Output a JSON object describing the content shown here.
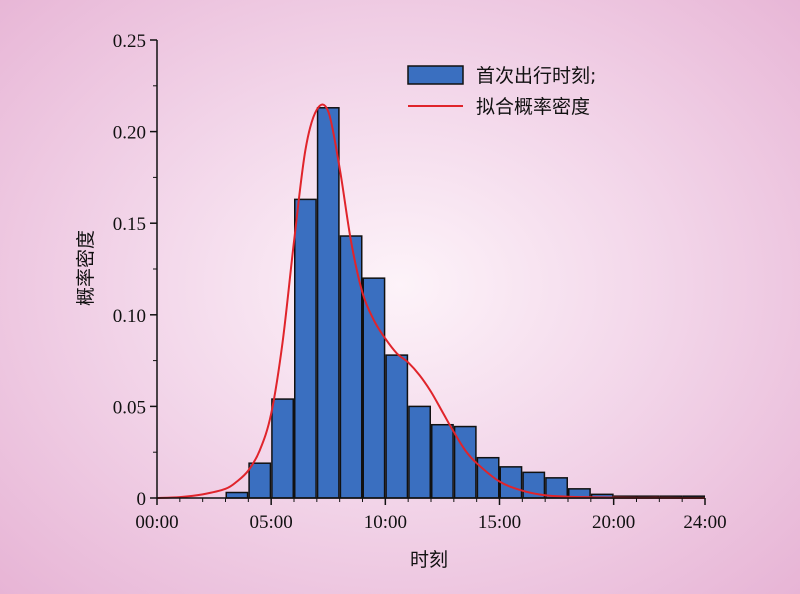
{
  "chart_data": {
    "type": "bar",
    "xlabel": "时刻",
    "ylabel": "概率密度",
    "xlim": [
      0,
      24
    ],
    "ylim": [
      0,
      0.25
    ],
    "x_ticks": [
      {
        "value": 0,
        "label": "00:00"
      },
      {
        "value": 5,
        "label": "05:00"
      },
      {
        "value": 10,
        "label": "10:00"
      },
      {
        "value": 15,
        "label": "15:00"
      },
      {
        "value": 20,
        "label": "20:00"
      },
      {
        "value": 24,
        "label": "24:00"
      }
    ],
    "y_ticks": [
      {
        "value": 0,
        "label": "0"
      },
      {
        "value": 0.05,
        "label": "0.05"
      },
      {
        "value": 0.1,
        "label": "0.10"
      },
      {
        "value": 0.15,
        "label": "0.15"
      },
      {
        "value": 0.2,
        "label": "0.20"
      },
      {
        "value": 0.25,
        "label": "0.25"
      }
    ],
    "legend_position": "top-right",
    "series": [
      {
        "name": "首次出行时刻;",
        "kind": "histogram",
        "color": "#3a6fc0",
        "bin_width": 1,
        "bin_starts": [
          3,
          4,
          5,
          6,
          7,
          8,
          9,
          10,
          11,
          12,
          13,
          14,
          15,
          16,
          17,
          18,
          19,
          20,
          21,
          22,
          23
        ],
        "values": [
          0.003,
          0.019,
          0.054,
          0.163,
          0.213,
          0.143,
          0.12,
          0.078,
          0.05,
          0.04,
          0.039,
          0.022,
          0.017,
          0.014,
          0.011,
          0.005,
          0.002,
          0.001,
          0.001,
          0.001,
          0.001
        ]
      },
      {
        "name": "拟合概率密度",
        "kind": "line",
        "color": "#e0242b",
        "x": [
          0,
          1,
          2,
          3,
          3.5,
          4,
          4.5,
          5,
          5.5,
          6,
          6.5,
          7,
          7.5,
          8,
          8.5,
          9,
          9.5,
          10,
          10.5,
          11,
          11.5,
          12,
          12.5,
          13,
          13.5,
          14,
          15,
          16,
          17,
          18,
          19,
          20,
          21,
          22,
          23,
          24
        ],
        "y": [
          0,
          0.0005,
          0.002,
          0.005,
          0.009,
          0.015,
          0.026,
          0.046,
          0.085,
          0.14,
          0.19,
          0.212,
          0.211,
          0.18,
          0.14,
          0.112,
          0.097,
          0.087,
          0.079,
          0.074,
          0.067,
          0.058,
          0.047,
          0.036,
          0.026,
          0.019,
          0.009,
          0.004,
          0.0015,
          0.0007,
          0.0004,
          0.0002,
          0.0001,
          0.0001,
          0,
          0
        ]
      }
    ]
  }
}
